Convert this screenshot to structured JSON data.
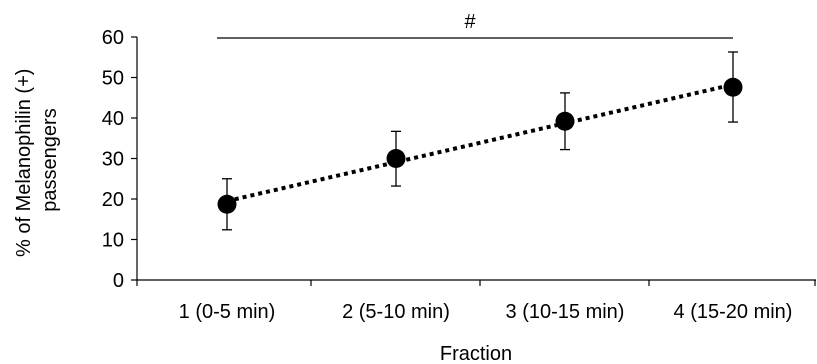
{
  "chart_data": {
    "type": "scatter",
    "title": "",
    "xlabel": "Fraction",
    "ylabel_lines": [
      "% of Melanophilin (+)",
      "passengers"
    ],
    "categories": [
      "1 (0-5 min)",
      "2 (5-10 min)",
      "3 (10-15 min)",
      "4 (15-20 min)"
    ],
    "series": [
      {
        "values": [
          18.7,
          30.0,
          39.2,
          47.6
        ],
        "error_low": [
          12.4,
          23.2,
          32.2,
          39.0
        ],
        "error_high": [
          25.0,
          36.7,
          46.2,
          56.3
        ],
        "marker": "circle",
        "color": "#000000"
      }
    ],
    "trendline": {
      "style": "dotted",
      "type": "linear",
      "color": "#000000"
    },
    "ylim": [
      0,
      60
    ],
    "yticks": [
      "0",
      "10",
      "20",
      "30",
      "40",
      "50",
      "60"
    ],
    "annotation": {
      "text": "#",
      "spans": [
        "1 (0-5 min)",
        "4 (15-20 min)"
      ],
      "at": 60
    },
    "grid": false
  }
}
